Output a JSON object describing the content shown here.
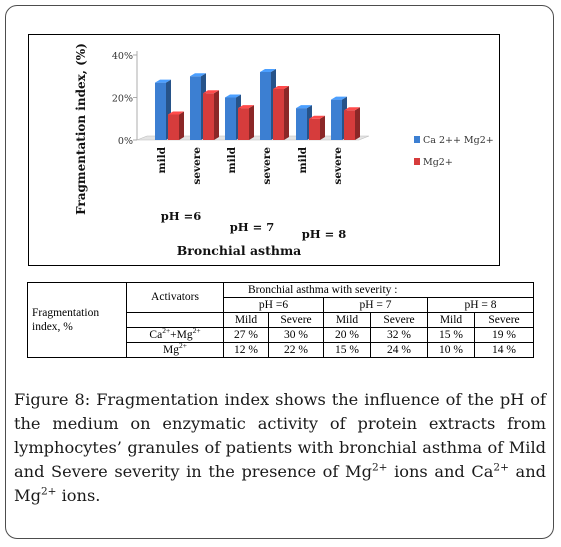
{
  "chart_data": {
    "type": "bar",
    "ylabel": "Fragmentation index, (%)",
    "xlabel": "Bronchial asthma",
    "y_ticks": [
      "0%",
      "20%",
      "40%"
    ],
    "ylim": [
      0,
      40
    ],
    "categories": [
      "mild",
      "severe",
      "mild",
      "severe",
      "mild",
      "severe"
    ],
    "groups": [
      "pH =6",
      "pH = 7",
      "pH = 8"
    ],
    "series": [
      {
        "name": "Ca 2++ Mg2+",
        "values": [
          27,
          30,
          20,
          32,
          15,
          19
        ],
        "color": "#3c7fd2"
      },
      {
        "name": "Mg2+",
        "values": [
          12,
          22,
          15,
          24,
          10,
          14
        ],
        "color": "#d63c3c"
      }
    ],
    "legend_position": "right",
    "grid": false
  },
  "table": {
    "row_header": "Fragmentation index,  %",
    "group_title": "Bronchial asthma with severity :",
    "activators_label": "Activators",
    "ph_headers": [
      "pH =6",
      "pH = 7",
      "pH = 8"
    ],
    "sub_headers": [
      "Mild",
      "Severe",
      "Mild",
      "Severe",
      "Mild",
      "Severe"
    ],
    "rows": [
      {
        "activator_main": "Ca",
        "activator_sup1": "2+",
        "activator_join": "+Mg",
        "activator_sup2": "2+",
        "values": [
          "27 %",
          "30 %",
          "20 %",
          "32 %",
          "15 %",
          "19 %"
        ]
      },
      {
        "activator_main": "Mg",
        "activator_sup1": "2+",
        "activator_join": "",
        "activator_sup2": "",
        "values": [
          "12 %",
          "22 %",
          "15 %",
          "24 %",
          "10 %",
          "14 %"
        ]
      }
    ]
  },
  "caption": {
    "label": "Figure 8:",
    "text1": " Fragmentation index shows the influence of the pH of the medium on enzymatic activity of protein extracts from lymphocytes’ granules of patients with bronchial asthma of Mild and Severe severity in the presence of Mg",
    "sup1": "2+",
    "text2": " ions and Ca",
    "sup2": "2+",
    "text3": " and Mg",
    "sup3": "2+",
    "text4": " ions."
  }
}
